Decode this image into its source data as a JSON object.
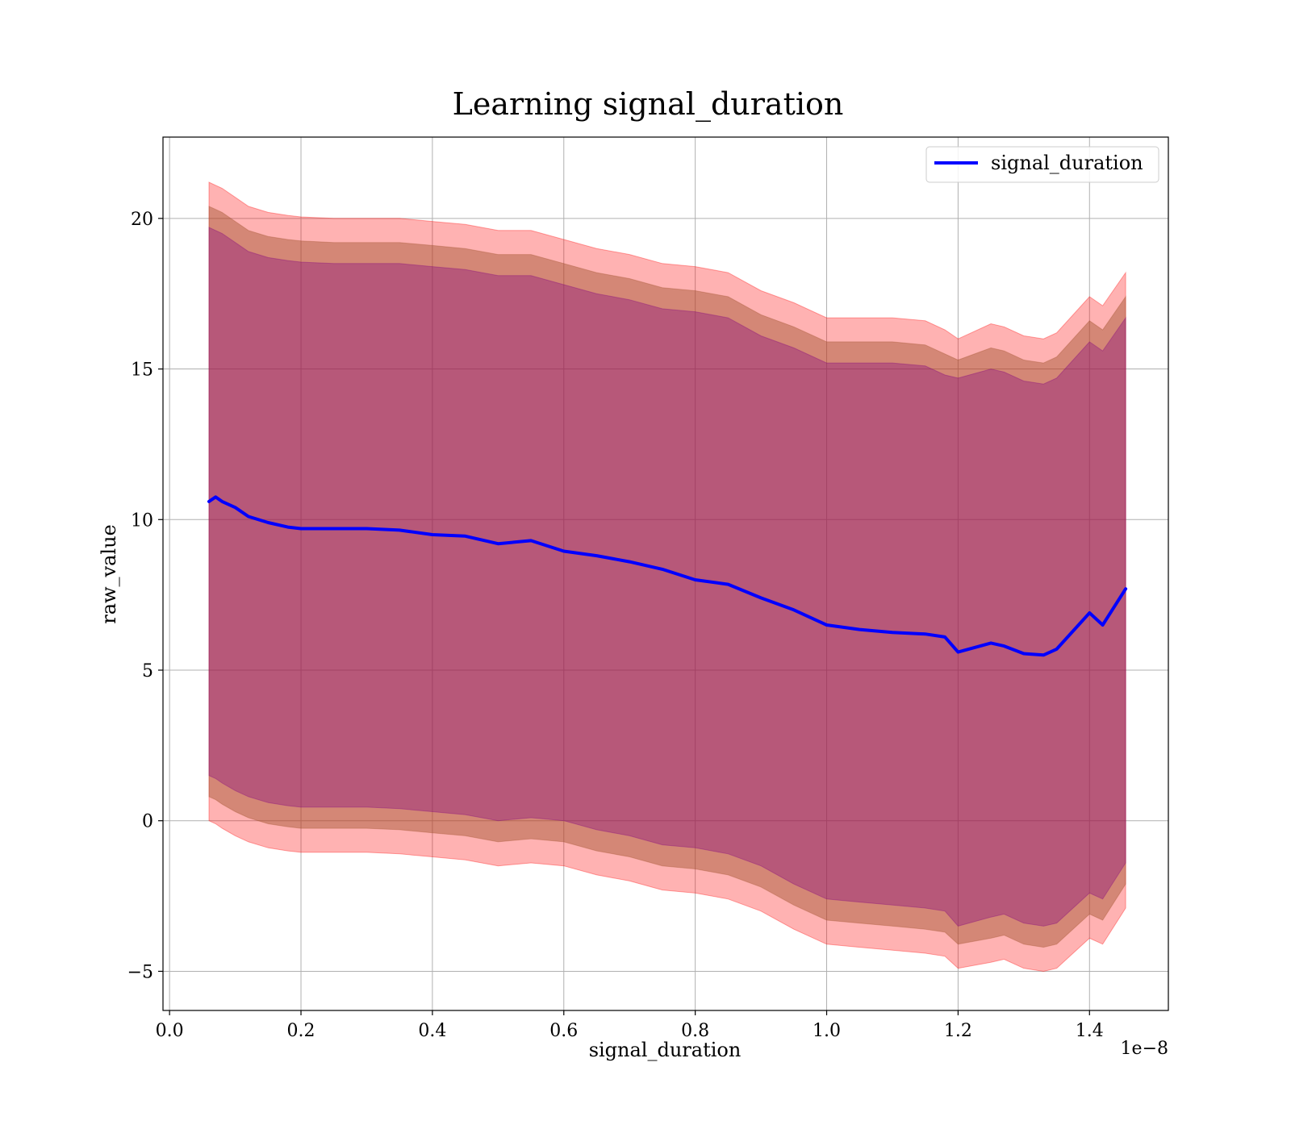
{
  "chart_data": {
    "type": "area",
    "title": "Learning signal_duration",
    "xlabel": "signal_duration",
    "ylabel": "raw_value",
    "x_offset_label": "1e−8",
    "xlim": [
      -0.01,
      1.52
    ],
    "ylim": [
      -6.3,
      22.7
    ],
    "grid": true,
    "legend_position": "top-right",
    "x_ticks": [
      0.0,
      0.2,
      0.4,
      0.6,
      0.8,
      1.0,
      1.2,
      1.4
    ],
    "x_tick_labels": [
      "0.0",
      "0.2",
      "0.4",
      "0.6",
      "0.8",
      "1.0",
      "1.2",
      "1.4"
    ],
    "y_ticks": [
      -5,
      0,
      5,
      10,
      15,
      20
    ],
    "y_tick_labels": [
      "−5",
      "0",
      "5",
      "10",
      "15",
      "20"
    ],
    "colors": {
      "line": "#0000ff",
      "band_outer": "#ff0000",
      "band_middle": "#a0522d",
      "band_inner": "#800080"
    },
    "series": [
      {
        "name": "signal_duration",
        "x": [
          0.06,
          0.07,
          0.08,
          0.1,
          0.12,
          0.15,
          0.18,
          0.2,
          0.25,
          0.3,
          0.35,
          0.4,
          0.45,
          0.5,
          0.55,
          0.6,
          0.65,
          0.7,
          0.75,
          0.8,
          0.85,
          0.9,
          0.95,
          1.0,
          1.05,
          1.1,
          1.15,
          1.18,
          1.2,
          1.25,
          1.27,
          1.3,
          1.33,
          1.35,
          1.4,
          1.42,
          1.455
        ],
        "values": [
          10.6,
          10.75,
          10.6,
          10.4,
          10.1,
          9.9,
          9.75,
          9.7,
          9.7,
          9.7,
          9.65,
          9.5,
          9.45,
          9.2,
          9.3,
          8.95,
          8.8,
          8.6,
          8.35,
          8.0,
          7.85,
          7.4,
          7.0,
          6.5,
          6.35,
          6.25,
          6.2,
          6.1,
          5.6,
          5.9,
          5.8,
          5.55,
          5.5,
          5.7,
          6.9,
          6.5,
          7.7
        ]
      }
    ],
    "bands": [
      {
        "label": "outer",
        "upper": [
          21.2,
          21.1,
          21.0,
          20.7,
          20.4,
          20.2,
          20.1,
          20.05,
          20.0,
          20.0,
          20.0,
          19.9,
          19.8,
          19.6,
          19.6,
          19.3,
          19.0,
          18.8,
          18.5,
          18.4,
          18.2,
          17.6,
          17.2,
          16.7,
          16.7,
          16.7,
          16.6,
          16.3,
          16.0,
          16.5,
          16.4,
          16.1,
          16.0,
          16.2,
          17.4,
          17.1,
          18.2
        ],
        "lower": [
          0.0,
          -0.1,
          -0.25,
          -0.5,
          -0.7,
          -0.9,
          -1.0,
          -1.05,
          -1.05,
          -1.05,
          -1.1,
          -1.2,
          -1.3,
          -1.5,
          -1.4,
          -1.5,
          -1.8,
          -2.0,
          -2.3,
          -2.4,
          -2.6,
          -3.0,
          -3.6,
          -4.1,
          -4.2,
          -4.3,
          -4.4,
          -4.5,
          -4.9,
          -4.7,
          -4.6,
          -4.9,
          -5.0,
          -4.9,
          -3.9,
          -4.1,
          -2.9
        ]
      },
      {
        "label": "middle",
        "upper": [
          20.4,
          20.3,
          20.2,
          19.9,
          19.6,
          19.4,
          19.3,
          19.25,
          19.2,
          19.2,
          19.2,
          19.1,
          19.0,
          18.8,
          18.8,
          18.5,
          18.2,
          18.0,
          17.7,
          17.6,
          17.4,
          16.8,
          16.4,
          15.9,
          15.9,
          15.9,
          15.8,
          15.5,
          15.3,
          15.7,
          15.6,
          15.3,
          15.2,
          15.4,
          16.6,
          16.3,
          17.4
        ],
        "lower": [
          0.8,
          0.7,
          0.55,
          0.3,
          0.1,
          -0.1,
          -0.2,
          -0.25,
          -0.25,
          -0.25,
          -0.3,
          -0.4,
          -0.5,
          -0.7,
          -0.6,
          -0.7,
          -1.0,
          -1.2,
          -1.5,
          -1.6,
          -1.8,
          -2.2,
          -2.8,
          -3.3,
          -3.4,
          -3.5,
          -3.6,
          -3.7,
          -4.1,
          -3.9,
          -3.8,
          -4.1,
          -4.2,
          -4.1,
          -3.1,
          -3.3,
          -2.1
        ]
      },
      {
        "label": "inner",
        "upper": [
          19.7,
          19.6,
          19.5,
          19.2,
          18.9,
          18.7,
          18.6,
          18.55,
          18.5,
          18.5,
          18.5,
          18.4,
          18.3,
          18.1,
          18.1,
          17.8,
          17.5,
          17.3,
          17.0,
          16.9,
          16.7,
          16.1,
          15.7,
          15.2,
          15.2,
          15.2,
          15.1,
          14.8,
          14.7,
          15.0,
          14.9,
          14.6,
          14.5,
          14.7,
          15.9,
          15.6,
          16.7
        ],
        "lower": [
          1.5,
          1.4,
          1.25,
          1.0,
          0.8,
          0.6,
          0.5,
          0.45,
          0.45,
          0.45,
          0.4,
          0.3,
          0.2,
          0.0,
          0.1,
          0.0,
          -0.3,
          -0.5,
          -0.8,
          -0.9,
          -1.1,
          -1.5,
          -2.1,
          -2.6,
          -2.7,
          -2.8,
          -2.9,
          -3.0,
          -3.5,
          -3.2,
          -3.1,
          -3.4,
          -3.5,
          -3.4,
          -2.4,
          -2.6,
          -1.4
        ]
      }
    ]
  }
}
